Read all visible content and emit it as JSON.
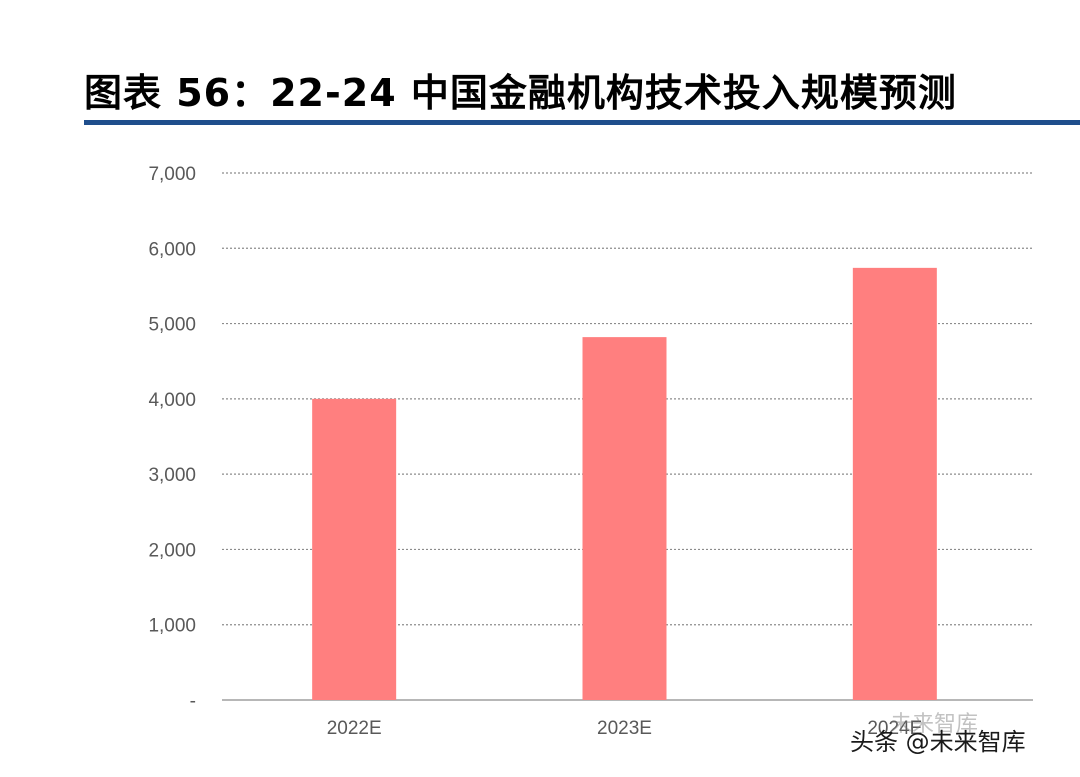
{
  "title": "图表 56：22-24 中国金融机构技术投入规模预测",
  "watermark": "头条 @未来智库",
  "watermark_ghost": "未来智库",
  "colors": {
    "bar": "#ff7f7f",
    "grid": "#8c8c8c",
    "title_rule": "#1f4e8c",
    "tick_text": "#595959"
  },
  "chart_data": {
    "type": "bar",
    "categories": [
      "2022E",
      "2023E",
      "2024E"
    ],
    "values": [
      4000,
      4820,
      5740
    ],
    "ylim": [
      0,
      7000
    ],
    "yticks": [
      0,
      1000,
      2000,
      3000,
      4000,
      5000,
      6000,
      7000
    ],
    "ytick_labels": [
      "-",
      "1,000",
      "2,000",
      "3,000",
      "4,000",
      "5,000",
      "6,000",
      "7,000"
    ],
    "grid": true,
    "grid_style": "dotted",
    "legend": "none",
    "title": "",
    "xlabel": "",
    "ylabel": ""
  }
}
